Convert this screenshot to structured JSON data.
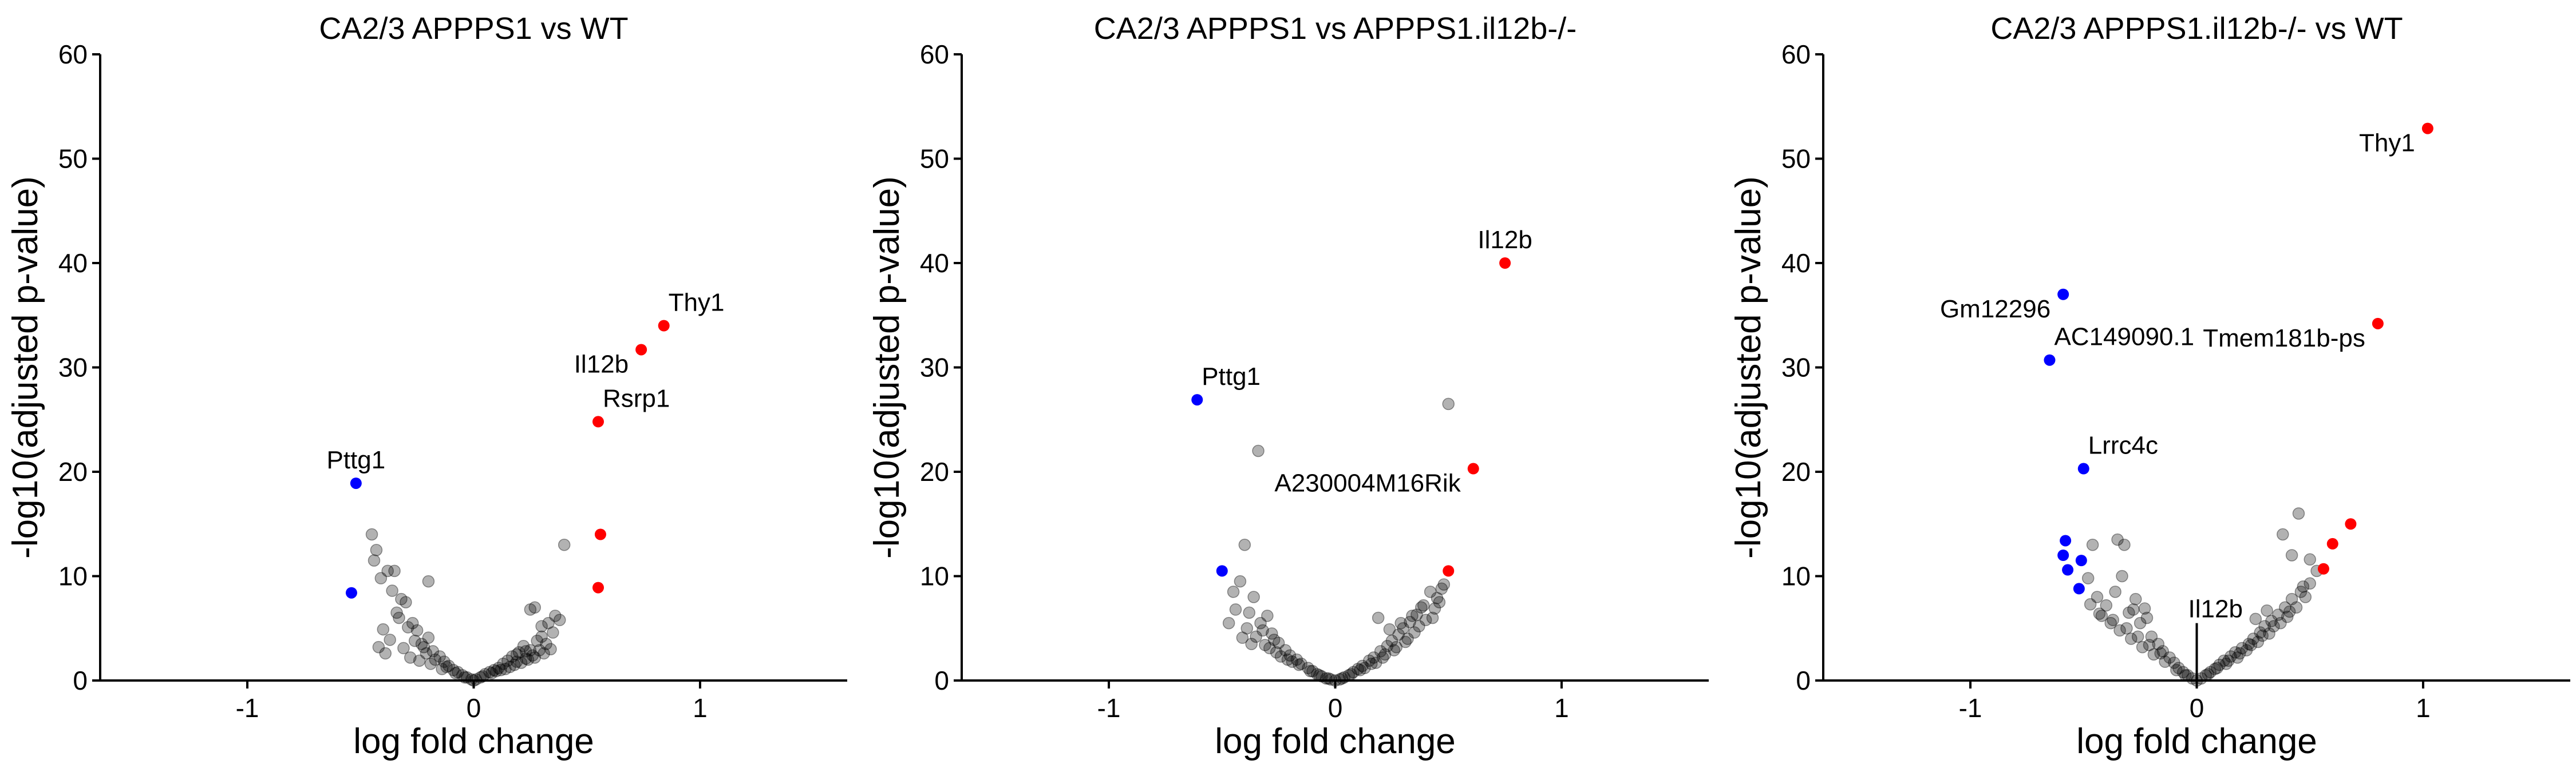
{
  "chart_data": [
    {
      "type": "scatter",
      "title": "CA2/3 APPPS1 vs WT",
      "xlabel": "log fold change",
      "ylabel": "-log10(adjusted p-value)",
      "xlim": [
        -1.65,
        1.65
      ],
      "ylim": [
        0,
        60
      ],
      "xticks": [
        -1,
        0,
        1
      ],
      "xtick_labels": [
        "-1",
        "0",
        "1"
      ],
      "yticks": [
        0,
        10,
        20,
        30,
        40,
        50,
        60
      ],
      "ytick_labels": [
        "0",
        "10",
        "20",
        "30",
        "40",
        "50",
        "60"
      ],
      "grid": false,
      "colors": {
        "up": "#ff0000",
        "down": "#0000ff",
        "ns": "#000000"
      },
      "significant_points": [
        {
          "x": 0.84,
          "y": 34.0,
          "dir": "up",
          "label": "Thy1",
          "label_pos": "above-right"
        },
        {
          "x": 0.74,
          "y": 31.7,
          "dir": "up",
          "label": "Il12b",
          "label_pos": "below-left"
        },
        {
          "x": 0.55,
          "y": 24.8,
          "dir": "up",
          "label": "Rsrp1",
          "label_pos": "above-right"
        },
        {
          "x": 0.56,
          "y": 14.0,
          "dir": "up",
          "label": ""
        },
        {
          "x": 0.55,
          "y": 8.9,
          "dir": "up",
          "label": ""
        },
        {
          "x": -0.52,
          "y": 18.9,
          "dir": "down",
          "label": "Pttg1",
          "label_pos": "above"
        },
        {
          "x": -0.54,
          "y": 8.4,
          "dir": "down",
          "label": ""
        }
      ],
      "background_points": {
        "x": [
          -0.45,
          -0.43,
          -0.41,
          -0.38,
          -0.36,
          -0.34,
          -0.3,
          -0.27,
          -0.25,
          -0.22,
          -0.2,
          -0.18,
          -0.15,
          -0.13,
          -0.11,
          -0.09,
          -0.07,
          -0.05,
          -0.03,
          -0.01,
          0.01,
          0.03,
          0.05,
          0.07,
          0.09,
          0.11,
          0.13,
          0.15,
          0.17,
          0.2,
          0.22,
          0.25,
          0.28,
          0.3,
          0.33,
          0.36,
          0.4,
          -0.44,
          -0.4,
          -0.37,
          -0.33,
          -0.29,
          -0.26,
          -0.21,
          -0.17,
          -0.12,
          -0.08,
          -0.04,
          0.0,
          0.04,
          0.08,
          0.12,
          0.16,
          0.19,
          0.23,
          0.26,
          0.29,
          0.32,
          0.35,
          -0.42,
          -0.39,
          -0.31,
          -0.28,
          -0.24,
          -0.19,
          -0.14,
          0.1,
          0.14,
          0.18,
          0.21,
          0.24,
          0.27,
          0.31,
          0.34,
          0.38,
          -0.35,
          -0.32,
          -0.23,
          0.19,
          0.23,
          0.27,
          0.3,
          -0.2,
          0.25
        ],
        "y": [
          14.0,
          12.5,
          9.8,
          10.5,
          8.6,
          6.5,
          7.5,
          5.5,
          4.8,
          3.2,
          4.1,
          2.8,
          2.3,
          1.8,
          1.4,
          1.0,
          0.8,
          0.5,
          0.3,
          0.1,
          0.1,
          0.3,
          0.6,
          0.8,
          1.0,
          1.2,
          1.6,
          1.9,
          2.3,
          2.7,
          3.3,
          2.9,
          3.8,
          4.2,
          5.5,
          6.2,
          13.0,
          11.5,
          4.9,
          3.9,
          6.0,
          5.1,
          3.8,
          2.6,
          2.0,
          1.3,
          0.7,
          0.3,
          0.0,
          0.4,
          0.7,
          1.0,
          1.3,
          1.8,
          2.1,
          2.4,
          2.9,
          3.5,
          4.6,
          3.2,
          2.6,
          3.1,
          2.2,
          1.9,
          1.6,
          1.1,
          0.9,
          1.1,
          1.5,
          1.7,
          2.0,
          2.2,
          2.6,
          3.0,
          5.8,
          10.5,
          7.8,
          3.5,
          2.5,
          2.8,
          7.0,
          5.2,
          9.5,
          6.8
        ]
      }
    },
    {
      "type": "scatter",
      "title": "CA2/3 APPPS1 vs APPPS1.il12b-/-",
      "xlabel": "log fold change",
      "ylabel": "-log10(adjusted p-value)",
      "xlim": [
        -1.65,
        1.65
      ],
      "ylim": [
        0,
        60
      ],
      "xticks": [
        -1,
        0,
        1
      ],
      "xtick_labels": [
        "-1",
        "0",
        "1"
      ],
      "yticks": [
        0,
        10,
        20,
        30,
        40,
        50,
        60
      ],
      "ytick_labels": [
        "0",
        "10",
        "20",
        "30",
        "40",
        "50",
        "60"
      ],
      "grid": false,
      "colors": {
        "up": "#ff0000",
        "down": "#0000ff",
        "ns": "#000000"
      },
      "significant_points": [
        {
          "x": 0.75,
          "y": 40.0,
          "dir": "up",
          "label": "Il12b",
          "label_pos": "above"
        },
        {
          "x": 0.61,
          "y": 20.3,
          "dir": "up",
          "label": "A230004M16Rik",
          "label_pos": "below-left"
        },
        {
          "x": 0.5,
          "y": 10.5,
          "dir": "up",
          "label": ""
        },
        {
          "x": -0.61,
          "y": 26.9,
          "dir": "down",
          "label": "Pttg1",
          "label_pos": "above-right"
        },
        {
          "x": -0.5,
          "y": 10.5,
          "dir": "down",
          "label": ""
        }
      ],
      "background_points": {
        "x": [
          0.5,
          -0.34,
          -0.4,
          -0.45,
          -0.42,
          -0.38,
          -0.36,
          -0.33,
          -0.3,
          -0.28,
          -0.25,
          -0.22,
          -0.2,
          -0.17,
          -0.15,
          -0.12,
          -0.1,
          -0.08,
          -0.06,
          -0.04,
          -0.02,
          0.0,
          0.02,
          0.04,
          0.06,
          0.08,
          0.1,
          0.12,
          0.15,
          0.17,
          0.2,
          0.23,
          0.25,
          0.28,
          0.3,
          0.33,
          0.36,
          0.39,
          0.42,
          0.45,
          0.48,
          -0.44,
          -0.39,
          -0.35,
          -0.31,
          -0.26,
          -0.21,
          -0.16,
          -0.11,
          -0.07,
          -0.03,
          0.03,
          0.07,
          0.11,
          0.16,
          0.21,
          0.26,
          0.31,
          0.35,
          0.4,
          0.44,
          -0.47,
          -0.41,
          -0.37,
          -0.29,
          -0.24,
          -0.19,
          0.13,
          0.18,
          0.22,
          0.27,
          0.32,
          0.37,
          0.43,
          0.46,
          -0.32,
          -0.27,
          0.19,
          0.24,
          0.29,
          0.34,
          0.38,
          0.47
        ],
        "y": [
          26.5,
          22.0,
          13.0,
          8.5,
          9.5,
          6.5,
          8.0,
          5.5,
          6.2,
          4.5,
          3.6,
          2.9,
          2.4,
          2.0,
          1.6,
          1.2,
          0.9,
          0.6,
          0.4,
          0.2,
          0.1,
          0.0,
          0.1,
          0.3,
          0.5,
          0.8,
          1.1,
          1.4,
          1.9,
          2.2,
          2.8,
          3.3,
          3.8,
          4.4,
          5.0,
          5.6,
          6.3,
          7.2,
          8.5,
          7.9,
          9.2,
          6.8,
          5.0,
          4.2,
          3.4,
          2.7,
          2.0,
          1.5,
          0.9,
          0.5,
          0.2,
          0.2,
          0.6,
          1.0,
          1.6,
          2.2,
          2.9,
          3.7,
          4.6,
          5.8,
          6.9,
          5.5,
          4.1,
          3.5,
          3.1,
          2.3,
          1.8,
          1.2,
          1.7,
          2.5,
          3.2,
          4.0,
          5.2,
          6.0,
          7.5,
          4.8,
          3.9,
          6.0,
          4.9,
          5.5,
          6.2,
          7.0,
          8.8
        ]
      }
    },
    {
      "type": "scatter",
      "title": "CA2/3 APPPS1.il12b-/- vs WT",
      "xlabel": "log fold change",
      "ylabel": "-log10(adjusted p-value)",
      "xlim": [
        -1.65,
        1.65
      ],
      "ylim": [
        0,
        60
      ],
      "xticks": [
        -1,
        0,
        1
      ],
      "xtick_labels": [
        "-1",
        "0",
        "1"
      ],
      "yticks": [
        0,
        10,
        20,
        30,
        40,
        50,
        60
      ],
      "ytick_labels": [
        "0",
        "10",
        "20",
        "30",
        "40",
        "50",
        "60"
      ],
      "grid": false,
      "colors": {
        "up": "#ff0000",
        "down": "#0000ff",
        "ns": "#000000"
      },
      "significant_points": [
        {
          "x": 1.02,
          "y": 52.9,
          "dir": "up",
          "label": "Thy1",
          "label_pos": "below-left"
        },
        {
          "x": 0.8,
          "y": 34.2,
          "dir": "up",
          "label": "Tmem181b-ps",
          "label_pos": "below-left"
        },
        {
          "x": 0.68,
          "y": 15.0,
          "dir": "up",
          "label": ""
        },
        {
          "x": 0.6,
          "y": 13.1,
          "dir": "up",
          "label": ""
        },
        {
          "x": 0.56,
          "y": 10.7,
          "dir": "up",
          "label": ""
        },
        {
          "x": -0.59,
          "y": 37.0,
          "dir": "down",
          "label": "Gm12296",
          "label_pos": "below-left"
        },
        {
          "x": -0.65,
          "y": 30.7,
          "dir": "down",
          "label": "AC149090.1",
          "label_pos": "above-right"
        },
        {
          "x": -0.5,
          "y": 20.3,
          "dir": "down",
          "label": "Lrrc4c",
          "label_pos": "above-right"
        },
        {
          "x": -0.58,
          "y": 13.4,
          "dir": "down",
          "label": ""
        },
        {
          "x": -0.59,
          "y": 12.0,
          "dir": "down",
          "label": ""
        },
        {
          "x": -0.51,
          "y": 11.5,
          "dir": "down",
          "label": ""
        },
        {
          "x": -0.57,
          "y": 10.6,
          "dir": "down",
          "label": ""
        },
        {
          "x": -0.52,
          "y": 8.8,
          "dir": "down",
          "label": ""
        }
      ],
      "annotation": {
        "label": "Il12b",
        "x": 0.0,
        "y": 5.5
      },
      "background_points": {
        "x": [
          0.45,
          0.38,
          0.42,
          0.5,
          -0.46,
          -0.48,
          -0.35,
          -0.32,
          -0.44,
          -0.4,
          -0.36,
          -0.33,
          -0.3,
          -0.28,
          -0.25,
          -0.22,
          -0.2,
          -0.17,
          -0.15,
          -0.12,
          -0.1,
          -0.08,
          -0.06,
          -0.04,
          -0.02,
          0.0,
          0.02,
          0.04,
          0.06,
          0.08,
          0.1,
          0.12,
          0.15,
          0.17,
          0.2,
          0.23,
          0.25,
          0.28,
          0.3,
          0.33,
          0.36,
          0.39,
          0.42,
          0.46,
          0.5,
          0.53,
          -0.42,
          -0.38,
          -0.34,
          -0.29,
          -0.24,
          -0.19,
          -0.14,
          -0.09,
          -0.05,
          0.05,
          0.09,
          0.14,
          0.19,
          0.24,
          0.29,
          0.34,
          0.4,
          0.44,
          0.48,
          -0.47,
          -0.43,
          -0.37,
          -0.31,
          -0.26,
          -0.21,
          -0.16,
          0.13,
          0.18,
          0.22,
          0.27,
          0.32,
          0.37,
          0.41,
          -0.27,
          -0.23,
          0.26,
          0.31,
          0.47
        ],
        "y": [
          16.0,
          14.0,
          12.0,
          11.6,
          13.0,
          9.8,
          13.5,
          13.0,
          8.0,
          7.2,
          8.5,
          10.0,
          6.5,
          6.8,
          5.5,
          6.0,
          4.2,
          3.5,
          2.8,
          2.2,
          1.7,
          1.2,
          0.8,
          0.5,
          0.2,
          0.0,
          0.2,
          0.5,
          0.8,
          1.1,
          1.5,
          1.9,
          2.3,
          2.7,
          3.1,
          3.5,
          4.0,
          4.6,
          5.2,
          5.7,
          6.3,
          7.0,
          7.8,
          8.5,
          9.3,
          10.5,
          6.2,
          5.5,
          4.8,
          4.0,
          3.2,
          2.5,
          1.8,
          1.0,
          0.5,
          0.6,
          1.2,
          1.9,
          2.6,
          3.4,
          4.3,
          5.2,
          6.1,
          7.0,
          8.0,
          7.3,
          6.4,
          5.8,
          5.0,
          4.2,
          3.4,
          2.6,
          1.6,
          2.2,
          2.9,
          3.7,
          4.5,
          5.5,
          6.6,
          7.8,
          6.9,
          5.9,
          6.7,
          9.0
        ]
      }
    }
  ]
}
